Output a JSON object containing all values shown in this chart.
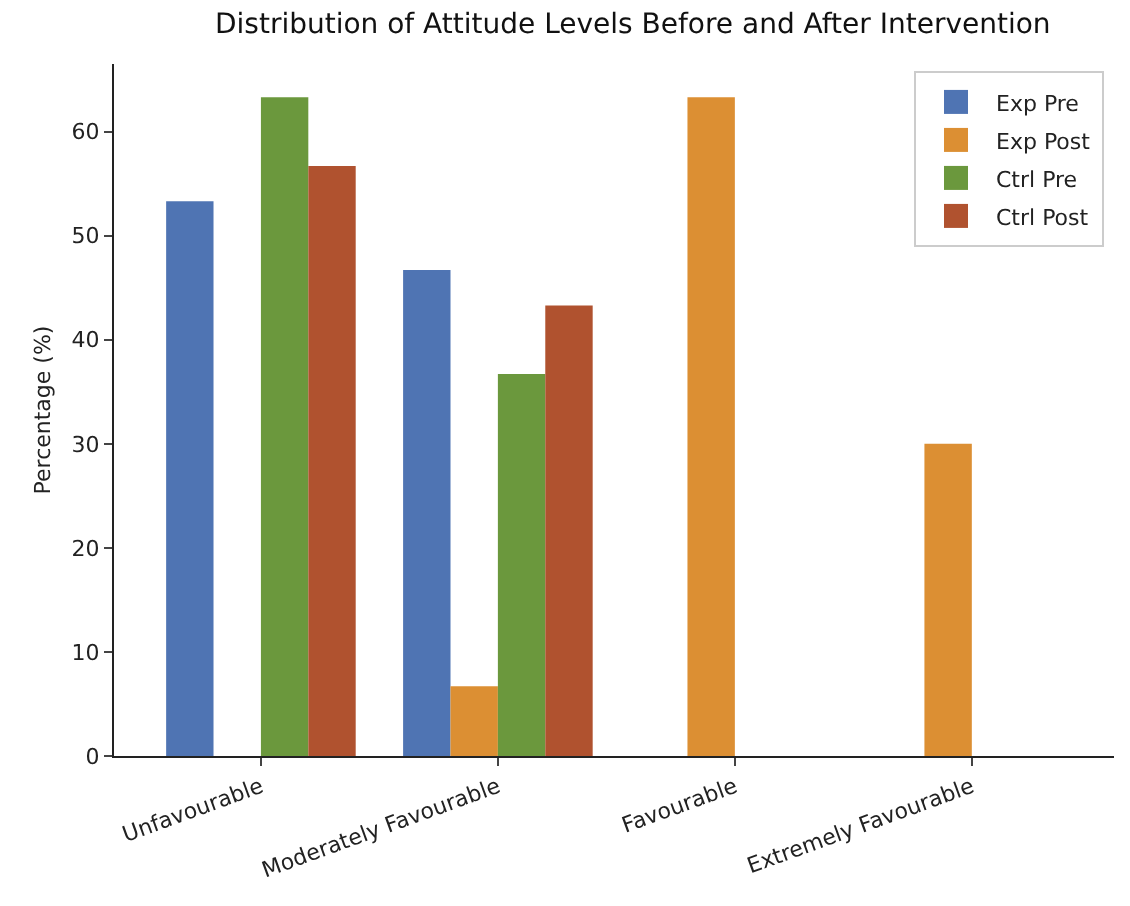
{
  "chart_data": {
    "type": "bar",
    "title": "Distribution of Attitude Levels Before and After Intervention",
    "ylabel": "Percentage (%)",
    "categories": [
      "Unfavourable",
      "Moderately Favourable",
      "Favourable",
      "Extremely Favourable"
    ],
    "series": [
      {
        "name": "Exp Pre",
        "color": "#4f74b3",
        "values": [
          53.3,
          46.7,
          0,
          0
        ]
      },
      {
        "name": "Exp Post",
        "color": "#dc8f33",
        "values": [
          0,
          6.7,
          63.3,
          30
        ]
      },
      {
        "name": "Ctrl Pre",
        "color": "#6b983d",
        "values": [
          63.3,
          36.7,
          0,
          0
        ]
      },
      {
        "name": "Ctrl Post",
        "color": "#b0522f",
        "values": [
          56.7,
          43.3,
          0,
          0
        ]
      }
    ],
    "ylim": [
      0,
      66.5
    ],
    "yticks": [
      0,
      10,
      20,
      30,
      40,
      50,
      60
    ],
    "grid": false,
    "legend": "top right"
  }
}
